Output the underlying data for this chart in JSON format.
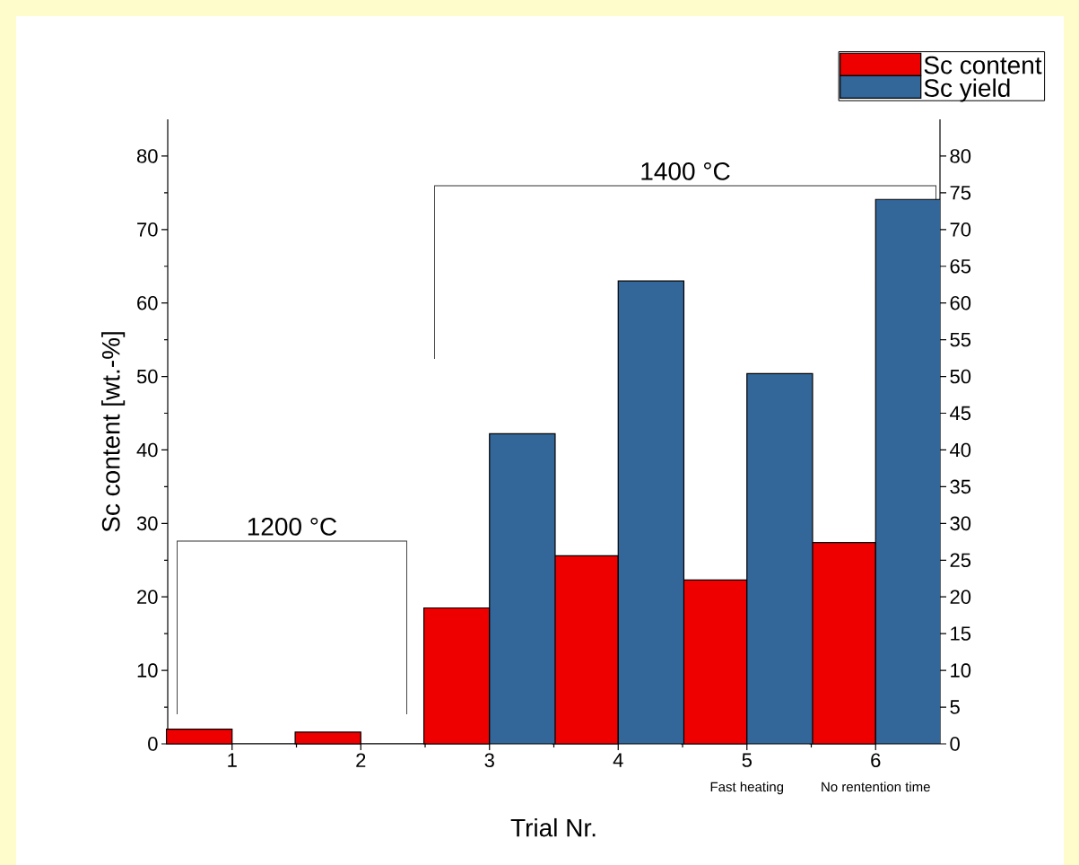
{
  "chart_data": {
    "type": "bar",
    "categories": [
      "1",
      "2",
      "3",
      "4",
      "5",
      "6"
    ],
    "series": [
      {
        "name": "Sc content",
        "color": "#ee0000",
        "values": [
          2.0,
          1.6,
          18.5,
          25.6,
          22.3,
          27.4
        ]
      },
      {
        "name": "Sc yield",
        "color": "#336699",
        "axis": "y2",
        "values": [
          0,
          0,
          42.2,
          63.0,
          50.4,
          74.1
        ]
      }
    ],
    "xlabel": "Trial Nr.",
    "ylabel": "Sc content [wt.-%]",
    "ylim": [
      0,
      85
    ],
    "yticks": [
      0,
      10,
      20,
      30,
      40,
      50,
      60,
      70,
      80
    ],
    "y2lim": [
      0,
      85
    ],
    "y2ticks": [
      0,
      5,
      10,
      15,
      20,
      25,
      30,
      35,
      40,
      45,
      50,
      55,
      60,
      65,
      70,
      75,
      80
    ],
    "legend": "top right",
    "annotations": [
      "1200 °C",
      "1400 °C",
      "Fast heating",
      "No rentention time"
    ]
  }
}
